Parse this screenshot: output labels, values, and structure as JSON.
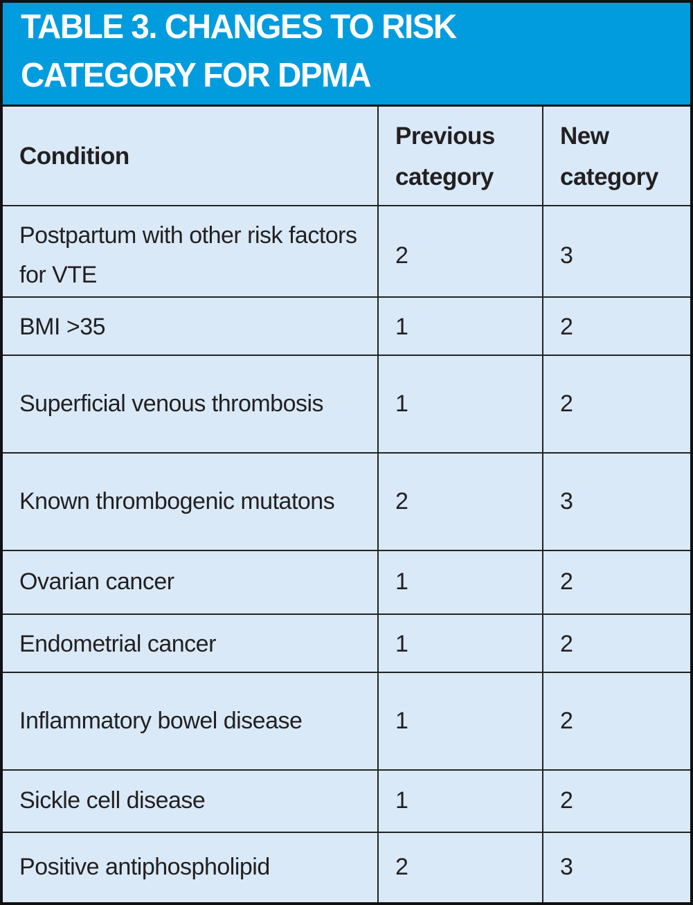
{
  "title": {
    "line1": "TABLE 3. CHANGES TO RISK",
    "line2": "CATEGORY FOR DPMA"
  },
  "table": {
    "columns": {
      "condition": "Condition",
      "previous": "Previous category",
      "new": "New category"
    },
    "rows": [
      {
        "condition": "Postpartum with other risk factors for VTE",
        "previous": "2",
        "new": "3"
      },
      {
        "condition": "BMI >35",
        "previous": "1",
        "new": "2"
      },
      {
        "condition": "Superficial venous thrombosis",
        "previous": "1",
        "new": "2"
      },
      {
        "condition": "Known thrombogenic mutatons",
        "previous": "2",
        "new": "3"
      },
      {
        "condition": "Ovarian cancer",
        "previous": "1",
        "new": "2"
      },
      {
        "condition": "Endometrial cancer",
        "previous": "1",
        "new": "2"
      },
      {
        "condition": "Inflammatory bowel disease",
        "previous": "1",
        "new": "2"
      },
      {
        "condition": "Sickle cell disease",
        "previous": "1",
        "new": "2"
      },
      {
        "condition": "Positive antiphospholipid",
        "previous": "2",
        "new": "3"
      }
    ]
  },
  "colors": {
    "title_bg": "#009cde",
    "title_text": "#ffffff",
    "cell_bg": "#d9e9f8",
    "grid_border": "#222222",
    "outer_border": "#111111",
    "body_text": "#231f20"
  }
}
